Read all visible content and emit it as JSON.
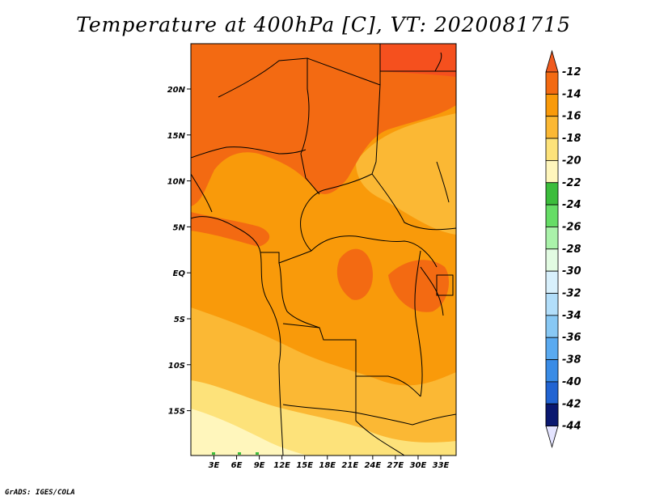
{
  "title": "Temperature at 400hPa [C], VT: 2020081715",
  "credit": "GrADS: IGES/COLA",
  "map": {
    "lat_labels": [
      "20N",
      "15N",
      "10N",
      "5N",
      "EQ",
      "5S",
      "10S",
      "15S"
    ],
    "lon_labels": [
      "3E",
      "6E",
      "9E",
      "12E",
      "15E",
      "18E",
      "21E",
      "24E",
      "27E",
      "30E",
      "33E"
    ],
    "lat_range": [
      -20,
      24
    ],
    "lon_range": [
      0,
      35
    ]
  },
  "colorbar": {
    "labels": [
      "-12",
      "-14",
      "-16",
      "-18",
      "-20",
      "-22",
      "-24",
      "-26",
      "-28",
      "-30",
      "-32",
      "-34",
      "-36",
      "-38",
      "-40",
      "-42",
      "-44"
    ],
    "colors": {
      "top_arrow": "#f05a1e",
      "bins": [
        "#f36a12",
        "#f99a0a",
        "#fbb834",
        "#fde27a",
        "#fff6bc",
        "#3cbd3c",
        "#66dd66",
        "#aaf2aa",
        "#e2fbe2",
        "#d8f0fc",
        "#b2defa",
        "#88c8f4",
        "#5aaaf0",
        "#3a8ce6",
        "#2264d2",
        "#1440ae"
      ],
      "bottom_arrow": "#e4e4ff",
      "deep_blue": "#0a1870"
    }
  },
  "field_colors": {
    "warmest": "#f5501e",
    "band_12_14": "#f36a12",
    "band_14_16": "#f99a0a",
    "band_16_18": "#fbb834",
    "band_18_20": "#fde27a",
    "band_20_22": "#fff6bc"
  }
}
